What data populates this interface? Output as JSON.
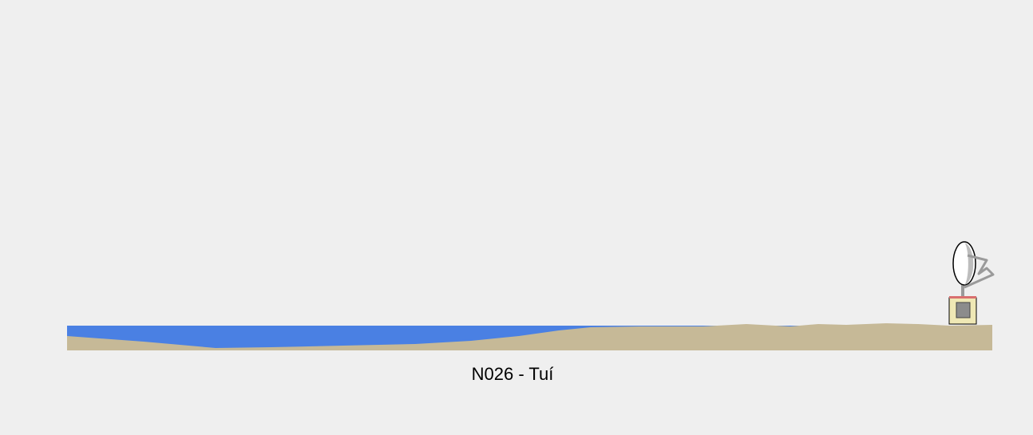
{
  "profile": {
    "caption": "N026 - Tuí"
  },
  "colors": {
    "background": "#efefef",
    "water": "#4a80e3",
    "terrain": "#c6b997",
    "antenna_base_fill": "#efe8b5",
    "antenna_base_top": "#d96f6f",
    "antenna_inner": "#8c8c8c",
    "dish_fill": "#ffffff",
    "dish_shade": "#bdbdbd",
    "mast": "#9a9a9a"
  },
  "icons": {
    "station": "satellite-dish-icon"
  }
}
